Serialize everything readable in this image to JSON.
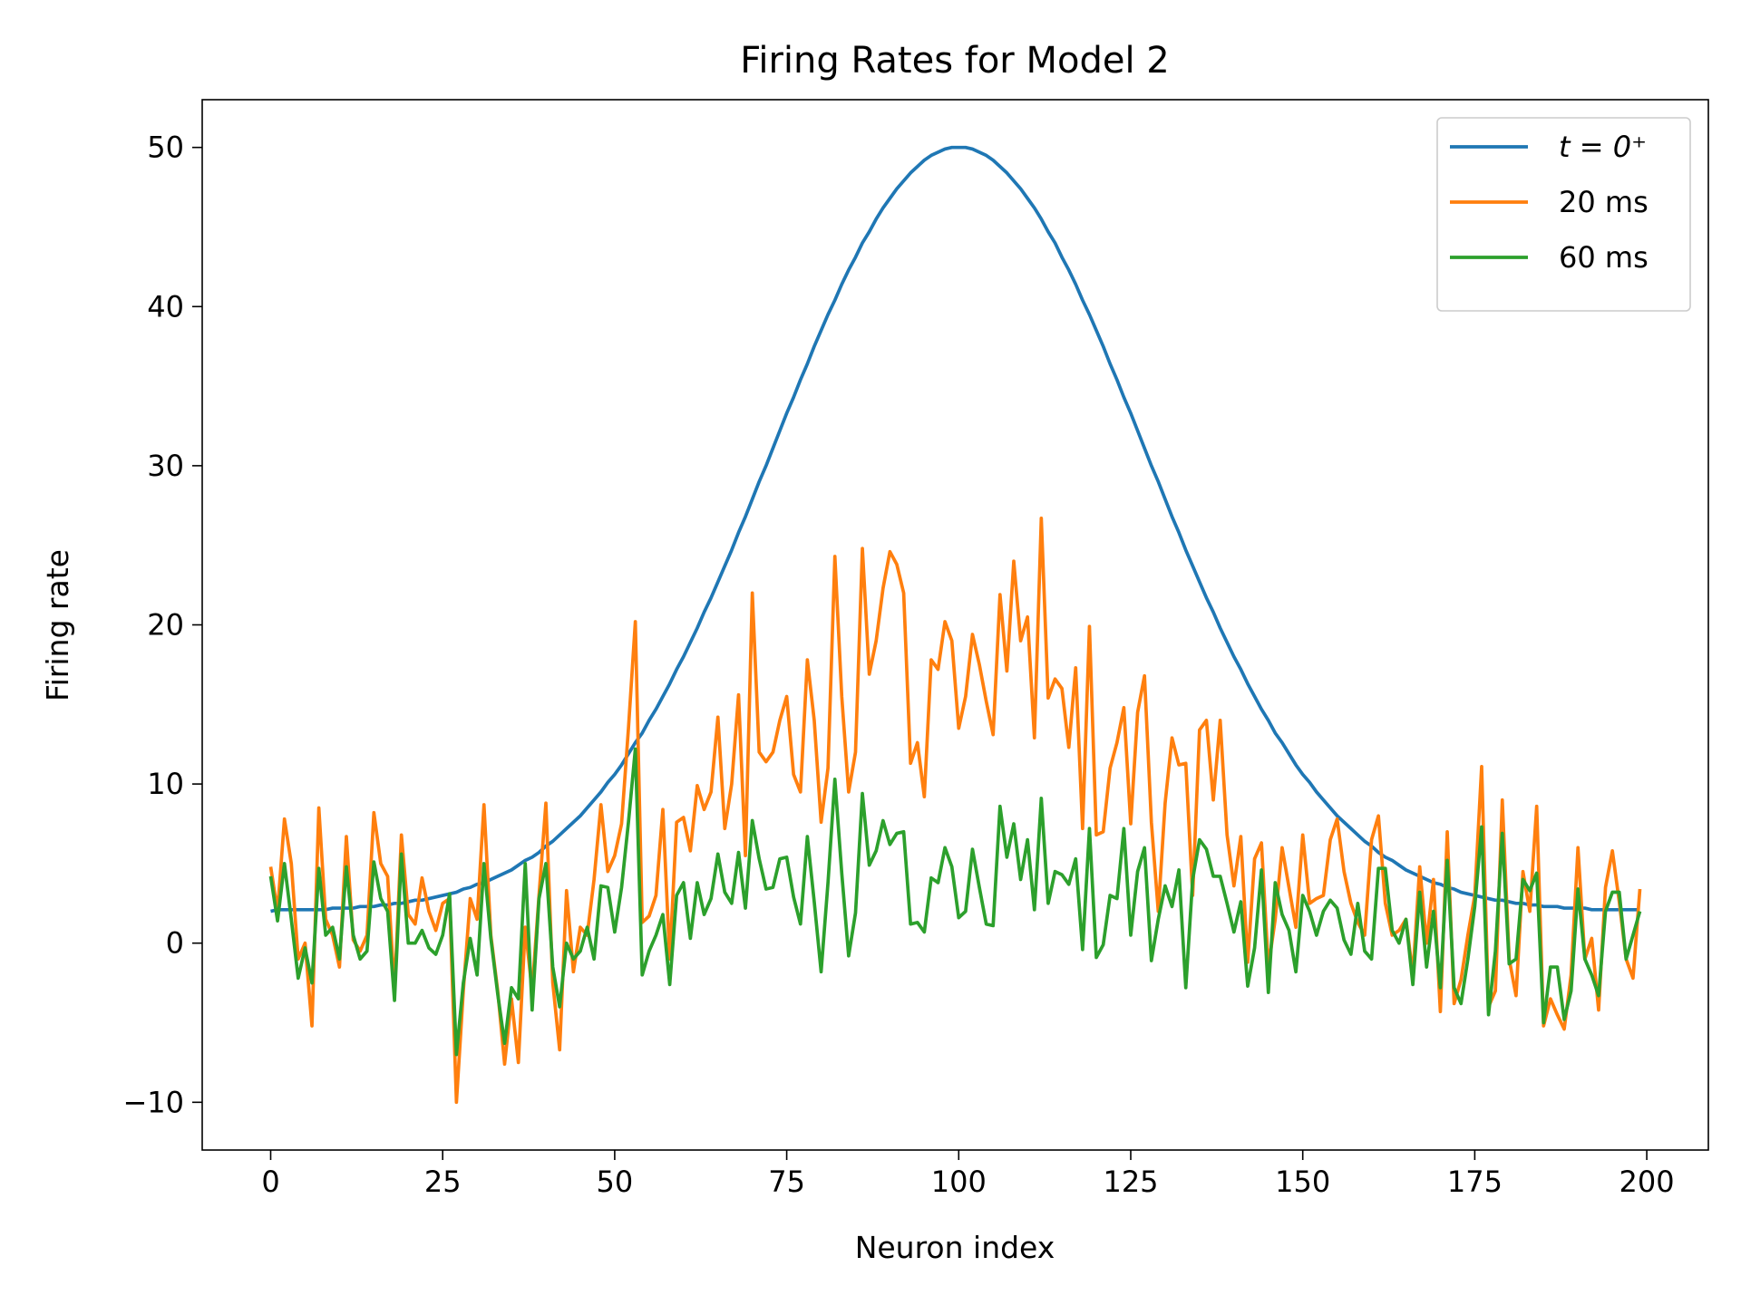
{
  "chart_data": {
    "type": "line",
    "title": "Firing Rates for Model 2",
    "xlabel": "Neuron index",
    "ylabel": "Firing rate",
    "x": [
      0,
      1,
      2,
      3,
      4,
      5,
      6,
      7,
      8,
      9,
      10,
      11,
      12,
      13,
      14,
      15,
      16,
      17,
      18,
      19,
      20,
      21,
      22,
      23,
      24,
      25,
      26,
      27,
      28,
      29,
      30,
      31,
      32,
      33,
      34,
      35,
      36,
      37,
      38,
      39,
      40,
      41,
      42,
      43,
      44,
      45,
      46,
      47,
      48,
      49,
      50,
      51,
      52,
      53,
      54,
      55,
      56,
      57,
      58,
      59,
      60,
      61,
      62,
      63,
      64,
      65,
      66,
      67,
      68,
      69,
      70,
      71,
      72,
      73,
      74,
      75,
      76,
      77,
      78,
      79,
      80,
      81,
      82,
      83,
      84,
      85,
      86,
      87,
      88,
      89,
      90,
      91,
      92,
      93,
      94,
      95,
      96,
      97,
      98,
      99,
      100,
      101,
      102,
      103,
      104,
      105,
      106,
      107,
      108,
      109,
      110,
      111,
      112,
      113,
      114,
      115,
      116,
      117,
      118,
      119,
      120,
      121,
      122,
      123,
      124,
      125,
      126,
      127,
      128,
      129,
      130,
      131,
      132,
      133,
      134,
      135,
      136,
      137,
      138,
      139,
      140,
      141,
      142,
      143,
      144,
      145,
      146,
      147,
      148,
      149,
      150,
      151,
      152,
      153,
      154,
      155,
      156,
      157,
      158,
      159,
      160,
      161,
      162,
      163,
      164,
      165,
      166,
      167,
      168,
      169,
      170,
      171,
      172,
      173,
      174,
      175,
      176,
      177,
      178,
      179,
      180,
      181,
      182,
      183,
      184,
      185,
      186,
      187,
      188,
      189,
      190,
      191,
      192,
      193,
      194,
      195,
      196,
      197,
      198,
      199
    ],
    "series": [
      {
        "name": "t = 0⁺",
        "color": "#1f77b4",
        "values": [
          2.0,
          2.1,
          2.1,
          2.1,
          2.1,
          2.1,
          2.1,
          2.1,
          2.1,
          2.2,
          2.2,
          2.2,
          2.2,
          2.3,
          2.3,
          2.3,
          2.4,
          2.4,
          2.5,
          2.5,
          2.6,
          2.7,
          2.7,
          2.8,
          2.9,
          3.0,
          3.1,
          3.2,
          3.4,
          3.5,
          3.7,
          3.8,
          4.0,
          4.2,
          4.4,
          4.6,
          4.9,
          5.2,
          5.4,
          5.7,
          6.1,
          6.4,
          6.8,
          7.2,
          7.6,
          8.0,
          8.5,
          9.0,
          9.5,
          10.1,
          10.6,
          11.2,
          11.9,
          12.6,
          13.2,
          14.0,
          14.7,
          15.5,
          16.3,
          17.2,
          18.0,
          18.9,
          19.8,
          20.8,
          21.7,
          22.7,
          23.7,
          24.7,
          25.8,
          26.8,
          27.9,
          29.0,
          30.0,
          31.1,
          32.2,
          33.3,
          34.3,
          35.4,
          36.4,
          37.5,
          38.5,
          39.5,
          40.4,
          41.4,
          42.3,
          43.1,
          44.0,
          44.7,
          45.5,
          46.2,
          46.8,
          47.4,
          47.9,
          48.4,
          48.8,
          49.2,
          49.5,
          49.7,
          49.9,
          50.0,
          50.0,
          50.0,
          49.9,
          49.7,
          49.5,
          49.2,
          48.8,
          48.4,
          47.9,
          47.4,
          46.8,
          46.2,
          45.5,
          44.7,
          44.0,
          43.1,
          42.3,
          41.4,
          40.4,
          39.5,
          38.5,
          37.5,
          36.4,
          35.4,
          34.3,
          33.3,
          32.2,
          31.1,
          30.0,
          29.0,
          27.9,
          26.8,
          25.8,
          24.7,
          23.7,
          22.7,
          21.7,
          20.8,
          19.8,
          18.9,
          18.0,
          17.2,
          16.3,
          15.5,
          14.7,
          14.0,
          13.2,
          12.6,
          11.9,
          11.2,
          10.6,
          10.1,
          9.5,
          9.0,
          8.5,
          8.0,
          7.6,
          7.2,
          6.8,
          6.4,
          6.1,
          5.7,
          5.4,
          5.2,
          4.9,
          4.6,
          4.4,
          4.2,
          4.0,
          3.8,
          3.7,
          3.5,
          3.4,
          3.2,
          3.1,
          3.0,
          2.9,
          2.8,
          2.7,
          2.7,
          2.6,
          2.5,
          2.5,
          2.4,
          2.4,
          2.3,
          2.3,
          2.3,
          2.2,
          2.2,
          2.2,
          2.2,
          2.1,
          2.1,
          2.1,
          2.1,
          2.1,
          2.1,
          2.1,
          2.1
        ]
      },
      {
        "name": "20 ms",
        "color": "#ff7f0e",
        "values": [
          4.8,
          2.0,
          7.8,
          5.0,
          -1.0,
          0.0,
          -5.2,
          8.5,
          1.5,
          0.5,
          -1.5,
          6.7,
          0.2,
          -0.5,
          0.5,
          8.2,
          5.0,
          4.2,
          -3.0,
          6.8,
          1.8,
          1.2,
          4.1,
          2.0,
          0.8,
          2.5,
          2.8,
          -10.0,
          -3.0,
          2.8,
          1.5,
          8.7,
          0.5,
          -3.0,
          -7.6,
          -3.5,
          -7.5,
          1.0,
          -3.0,
          3.0,
          8.8,
          -2.5,
          -6.7,
          3.3,
          -1.8,
          1.0,
          0.5,
          4.0,
          8.7,
          4.5,
          5.5,
          7.5,
          13.5,
          20.2,
          1.3,
          1.7,
          3.0,
          8.4,
          -1.0,
          7.6,
          7.9,
          5.8,
          9.9,
          8.4,
          9.5,
          14.2,
          7.2,
          10.0,
          15.6,
          5.5,
          22.0,
          12.0,
          11.4,
          12.0,
          14.0,
          15.5,
          10.6,
          9.5,
          17.8,
          14.0,
          7.6,
          11.0,
          24.3,
          15.5,
          9.5,
          12.0,
          24.8,
          16.9,
          19.0,
          22.3,
          24.6,
          23.8,
          22.0,
          11.3,
          12.6,
          9.2,
          17.8,
          17.2,
          20.2,
          19.0,
          13.5,
          15.5,
          19.4,
          17.5,
          15.2,
          13.1,
          21.9,
          17.1,
          24.0,
          19.0,
          20.5,
          12.9,
          26.7,
          15.4,
          16.6,
          16.0,
          12.3,
          17.3,
          7.2,
          19.9,
          6.8,
          7.0,
          11.0,
          12.6,
          14.8,
          7.5,
          14.5,
          16.8,
          7.6,
          2.0,
          8.8,
          12.9,
          11.2,
          11.3,
          3.0,
          13.4,
          14.0,
          9.0,
          14.0,
          6.8,
          3.6,
          6.7,
          -1.2,
          5.3,
          6.3,
          -1.5,
          1.5,
          6.0,
          3.5,
          1.0,
          6.8,
          2.5,
          2.8,
          3.0,
          6.5,
          7.8,
          4.5,
          2.5,
          1.3,
          0.5,
          6.5,
          8.0,
          2.5,
          0.5,
          0.8,
          1.5,
          -2.0,
          4.8,
          0.0,
          4.0,
          -4.3,
          7.0,
          -3.8,
          -2.3,
          0.5,
          3.0,
          11.1,
          -4.0,
          -3.0,
          9.0,
          -1.0,
          -3.3,
          4.5,
          2.0,
          8.6,
          -5.2,
          -3.5,
          -4.5,
          -5.4,
          -2.0,
          6.0,
          -1.0,
          0.3,
          -4.2,
          3.5,
          5.8,
          2.6,
          -1.0,
          -2.2,
          3.4
        ]
      },
      {
        "name": "60 ms",
        "color": "#2ca02c",
        "values": [
          4.2,
          1.4,
          5.0,
          1.5,
          -2.2,
          -0.3,
          -2.5,
          4.7,
          0.5,
          1.0,
          -1.0,
          4.8,
          0.5,
          -1.0,
          -0.5,
          5.1,
          2.8,
          2.0,
          -3.6,
          5.6,
          0.0,
          0.0,
          0.8,
          -0.3,
          -0.7,
          0.5,
          3.1,
          -7.0,
          -2.5,
          0.3,
          -2.0,
          5.0,
          0.3,
          -3.2,
          -6.3,
          -2.8,
          -3.5,
          5.0,
          -4.2,
          2.8,
          5.0,
          -1.5,
          -4.0,
          0.0,
          -1.0,
          -0.5,
          1.0,
          -1.0,
          3.6,
          3.5,
          0.7,
          3.5,
          7.6,
          12.2,
          -2.0,
          -0.5,
          0.5,
          1.8,
          -2.6,
          3.0,
          3.8,
          0.3,
          3.8,
          1.8,
          2.8,
          5.6,
          3.2,
          2.5,
          5.7,
          2.2,
          7.7,
          5.3,
          3.4,
          3.5,
          5.3,
          5.4,
          2.9,
          1.2,
          6.7,
          2.6,
          -1.8,
          3.8,
          10.3,
          4.4,
          -0.8,
          1.9,
          9.4,
          4.9,
          5.8,
          7.7,
          6.2,
          6.9,
          7.0,
          1.2,
          1.3,
          0.7,
          4.1,
          3.8,
          6.0,
          4.8,
          1.6,
          2.0,
          5.9,
          3.5,
          1.2,
          1.1,
          8.6,
          5.4,
          7.5,
          4.0,
          6.5,
          2.1,
          9.1,
          2.5,
          4.5,
          4.3,
          3.7,
          5.3,
          -0.4,
          7.2,
          -0.9,
          -0.1,
          3.0,
          2.8,
          7.2,
          0.5,
          4.5,
          6.0,
          -1.1,
          1.5,
          3.6,
          2.3,
          4.6,
          -2.8,
          4.0,
          6.5,
          5.9,
          4.2,
          4.2,
          2.5,
          0.7,
          2.6,
          -2.7,
          -0.3,
          4.6,
          -3.1,
          3.8,
          1.8,
          0.8,
          -1.8,
          3.0,
          2.0,
          0.5,
          2.0,
          2.7,
          2.2,
          0.2,
          -0.7,
          2.5,
          -0.5,
          -1.0,
          4.7,
          4.7,
          0.8,
          0.0,
          1.5,
          -2.6,
          3.2,
          -1.5,
          2.0,
          -2.8,
          5.2,
          -2.8,
          -3.8,
          -1.0,
          2.3,
          7.3,
          -4.5,
          -0.5,
          6.9,
          -1.3,
          -1.0,
          4.0,
          3.3,
          4.4,
          -5.0,
          -1.5,
          -1.5,
          -4.8,
          -3.0,
          3.4,
          -1.0,
          -2.0,
          -3.3,
          2.0,
          3.2,
          3.2,
          -1.0,
          0.5,
          2.0
        ]
      }
    ],
    "xlim": [
      -9.95,
      208.95
    ],
    "xticks": [
      0,
      25,
      50,
      75,
      100,
      125,
      150,
      175,
      200
    ],
    "ylim": [
      -13,
      53
    ],
    "yticks": [
      {
        "value": -10,
        "label": "−10"
      },
      0,
      10,
      20,
      30,
      40,
      50
    ],
    "grid": false,
    "legend": "upper right"
  }
}
